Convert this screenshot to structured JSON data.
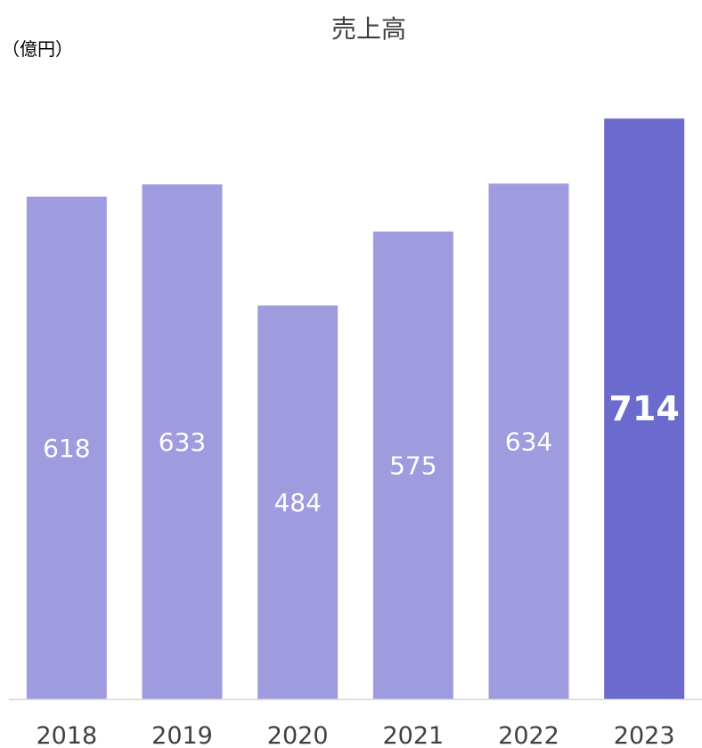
{
  "chart_data": {
    "type": "bar",
    "title": "売上高",
    "unit_label": "（億円）",
    "xlabel": "",
    "ylabel": "",
    "categories": [
      "2018",
      "2019",
      "2020",
      "2021",
      "2022",
      "2023"
    ],
    "values": [
      618,
      633,
      484,
      575,
      634,
      714
    ],
    "ylim": [
      0,
      770
    ],
    "grid": false,
    "legend": "none",
    "highlight_index": 5,
    "colors": {
      "bar": "#9e9cde",
      "highlight_bar": "#6b6bcd",
      "axis": "#d9d9d9",
      "label": "#ffffff",
      "text": "#404040"
    }
  }
}
